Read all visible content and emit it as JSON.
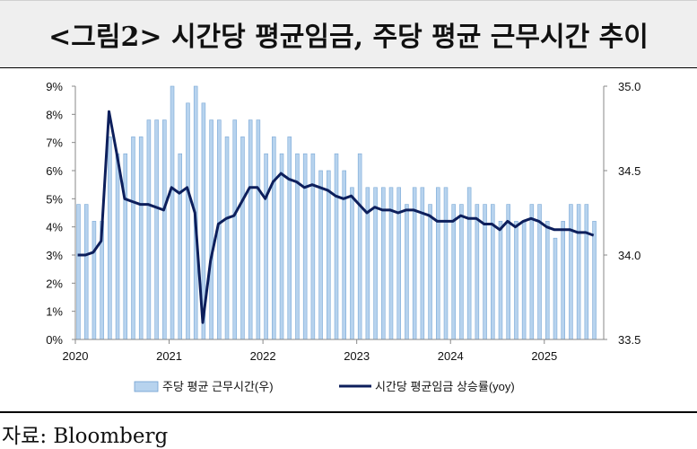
{
  "title": "<그림2> 시간당 평균임금, 주당 평균 근무시간 추이",
  "source": "자료: Bloomberg",
  "chart_data": {
    "type": "bar+line",
    "x_tick_labels": [
      "2020",
      "2021",
      "2022",
      "2023",
      "2024",
      "2025"
    ],
    "y_left_ticks": [
      "0%",
      "1%",
      "2%",
      "3%",
      "4%",
      "5%",
      "6%",
      "7%",
      "8%",
      "9%"
    ],
    "y_right_ticks": [
      "33.5",
      "34.0",
      "34.5",
      "35.0"
    ],
    "ylim_left": [
      0,
      9
    ],
    "ylim_right": [
      33.5,
      35.0
    ],
    "x_start": "2020-01",
    "series": [
      {
        "name": "주당 평균 근무시간(우)",
        "type": "bar",
        "axis": "right",
        "color": "#b7d3ee",
        "values": [
          34.3,
          34.3,
          34.2,
          34.2,
          34.7,
          34.6,
          34.6,
          34.7,
          34.7,
          34.8,
          34.8,
          34.8,
          35.0,
          34.6,
          34.9,
          35.0,
          34.9,
          34.8,
          34.8,
          34.7,
          34.8,
          34.7,
          34.8,
          34.8,
          34.6,
          34.7,
          34.6,
          34.7,
          34.6,
          34.6,
          34.6,
          34.5,
          34.5,
          34.6,
          34.5,
          34.4,
          34.6,
          34.4,
          34.4,
          34.4,
          34.4,
          34.4,
          34.3,
          34.4,
          34.4,
          34.3,
          34.4,
          34.4,
          34.3,
          34.3,
          34.4,
          34.3,
          34.3,
          34.3,
          34.2,
          34.3,
          34.2,
          34.2,
          34.3,
          34.3,
          34.2,
          34.1,
          34.2,
          34.3,
          34.3,
          34.3,
          34.2
        ]
      },
      {
        "name": "시간당 평균임금 상승률(yoy)",
        "type": "line",
        "axis": "left",
        "color": "#0d1f5c",
        "values": [
          3.0,
          3.0,
          3.1,
          3.5,
          8.1,
          6.6,
          5.0,
          4.9,
          4.8,
          4.8,
          4.7,
          4.6,
          5.4,
          5.2,
          5.4,
          4.5,
          0.6,
          2.8,
          4.1,
          4.3,
          4.4,
          4.9,
          5.4,
          5.4,
          5.0,
          5.6,
          5.9,
          5.7,
          5.6,
          5.4,
          5.5,
          5.4,
          5.3,
          5.1,
          5.0,
          5.1,
          4.8,
          4.5,
          4.7,
          4.6,
          4.6,
          4.5,
          4.6,
          4.6,
          4.5,
          4.4,
          4.2,
          4.2,
          4.2,
          4.4,
          4.3,
          4.3,
          4.1,
          4.1,
          3.9,
          4.2,
          4.0,
          4.2,
          4.3,
          4.2,
          4.0,
          3.9,
          3.9,
          3.9,
          3.8,
          3.8,
          3.7
        ]
      }
    ],
    "legend": "bottom",
    "grid": false
  }
}
